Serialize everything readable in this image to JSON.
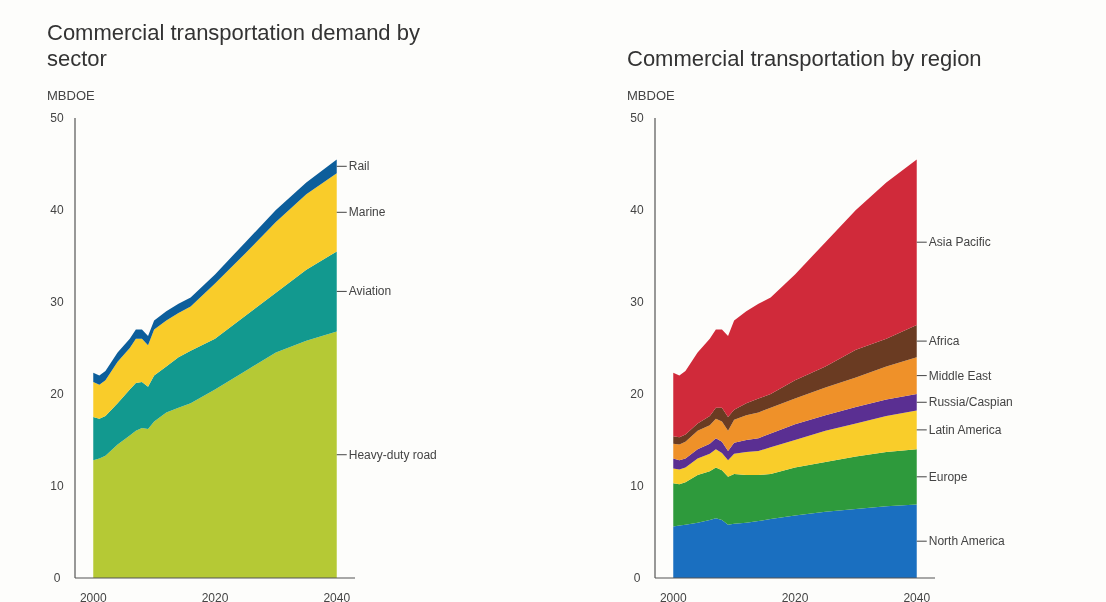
{
  "chart_data": [
    {
      "type": "area",
      "stacked": true,
      "title": "Commercial transportation demand by sector",
      "ylabel": "MBDOE",
      "x": [
        2000,
        2001,
        2002,
        2004,
        2006,
        2007,
        2008,
        2009,
        2010,
        2012,
        2014,
        2016,
        2020,
        2025,
        2030,
        2035,
        2040
      ],
      "xlim": [
        1997,
        2043
      ],
      "xticks": [
        2000,
        2020,
        2040
      ],
      "ylim": [
        0,
        50
      ],
      "yticks": [
        0,
        10,
        20,
        30,
        40,
        50
      ],
      "series": [
        {
          "name": "Heavy-duty road",
          "color": "#b5c935",
          "values": [
            12.8,
            13,
            13.3,
            14.5,
            15.5,
            16,
            16.3,
            16.2,
            17,
            18,
            18.5,
            19,
            20.5,
            22.5,
            24.5,
            25.8,
            26.8
          ]
        },
        {
          "name": "Aviation",
          "color": "#12998f",
          "values": [
            4.7,
            4.3,
            4.3,
            4.5,
            5.0,
            5.2,
            5.0,
            4.6,
            5.0,
            5.0,
            5.5,
            5.7,
            5.5,
            6.0,
            6.5,
            7.7,
            8.7
          ]
        },
        {
          "name": "Marine",
          "color": "#f9cc2a",
          "values": [
            3.8,
            3.7,
            3.9,
            4.5,
            4.5,
            4.8,
            4.7,
            4.5,
            5.0,
            5.0,
            4.8,
            4.8,
            6.0,
            6.8,
            7.7,
            8.2,
            8.5
          ]
        },
        {
          "name": "Rail",
          "color": "#0c5e9b",
          "values": [
            1.0,
            1.0,
            1.0,
            1.0,
            1.0,
            1.0,
            1.0,
            1.0,
            1.0,
            1.0,
            1.0,
            1.0,
            1.0,
            1.2,
            1.3,
            1.3,
            1.5
          ]
        }
      ]
    },
    {
      "type": "area",
      "stacked": true,
      "title": "Commercial transportation by region",
      "ylabel": "MBDOE",
      "x": [
        2000,
        2001,
        2002,
        2004,
        2006,
        2007,
        2008,
        2009,
        2010,
        2012,
        2014,
        2016,
        2020,
        2025,
        2030,
        2035,
        2040
      ],
      "xlim": [
        1997,
        2043
      ],
      "xticks": [
        2000,
        2020,
        2040
      ],
      "ylim": [
        0,
        50
      ],
      "yticks": [
        0,
        10,
        20,
        30,
        40,
        50
      ],
      "series": [
        {
          "name": "North America",
          "color": "#1a6fc0",
          "values": [
            5.6,
            5.7,
            5.8,
            6.0,
            6.3,
            6.5,
            6.3,
            5.8,
            5.9,
            6.0,
            6.2,
            6.4,
            6.8,
            7.2,
            7.5,
            7.8,
            8.0
          ]
        },
        {
          "name": "Europe",
          "color": "#2e9a3c",
          "values": [
            4.7,
            4.5,
            4.6,
            5.2,
            5.3,
            5.5,
            5.4,
            5.2,
            5.4,
            5.2,
            5.0,
            4.9,
            5.2,
            5.4,
            5.7,
            5.9,
            6.0
          ]
        },
        {
          "name": "Latin America",
          "color": "#f9cd2a",
          "values": [
            1.6,
            1.6,
            1.6,
            1.8,
            1.9,
            2.0,
            1.9,
            1.8,
            2.2,
            2.5,
            2.6,
            2.9,
            3.0,
            3.4,
            3.6,
            3.9,
            4.2
          ]
        },
        {
          "name": "Russia/Caspian",
          "color": "#5a2f92",
          "values": [
            1.1,
            1.0,
            1.0,
            1.0,
            1.1,
            1.2,
            1.2,
            1.0,
            1.2,
            1.3,
            1.4,
            1.5,
            1.7,
            1.7,
            1.8,
            1.8,
            1.8
          ]
        },
        {
          "name": "Middle East",
          "color": "#ef9129",
          "values": [
            1.6,
            1.7,
            1.8,
            2.0,
            2.0,
            2.1,
            2.2,
            2.2,
            2.5,
            2.7,
            2.8,
            2.8,
            2.8,
            3.0,
            3.2,
            3.6,
            4.0
          ]
        },
        {
          "name": "Africa",
          "color": "#6a3b22",
          "values": [
            0.8,
            0.8,
            0.8,
            0.8,
            1.0,
            1.2,
            1.5,
            1.5,
            1.1,
            1.3,
            1.5,
            1.5,
            2.0,
            2.3,
            3.0,
            3.0,
            3.5
          ]
        },
        {
          "name": "Asia Pacific",
          "color": "#d02a3a",
          "values": [
            6.9,
            6.7,
            6.9,
            7.7,
            8.4,
            8.5,
            8.5,
            8.8,
            9.7,
            10,
            10.3,
            10.5,
            11.5,
            13.5,
            15.2,
            17,
            18
          ]
        }
      ]
    }
  ]
}
